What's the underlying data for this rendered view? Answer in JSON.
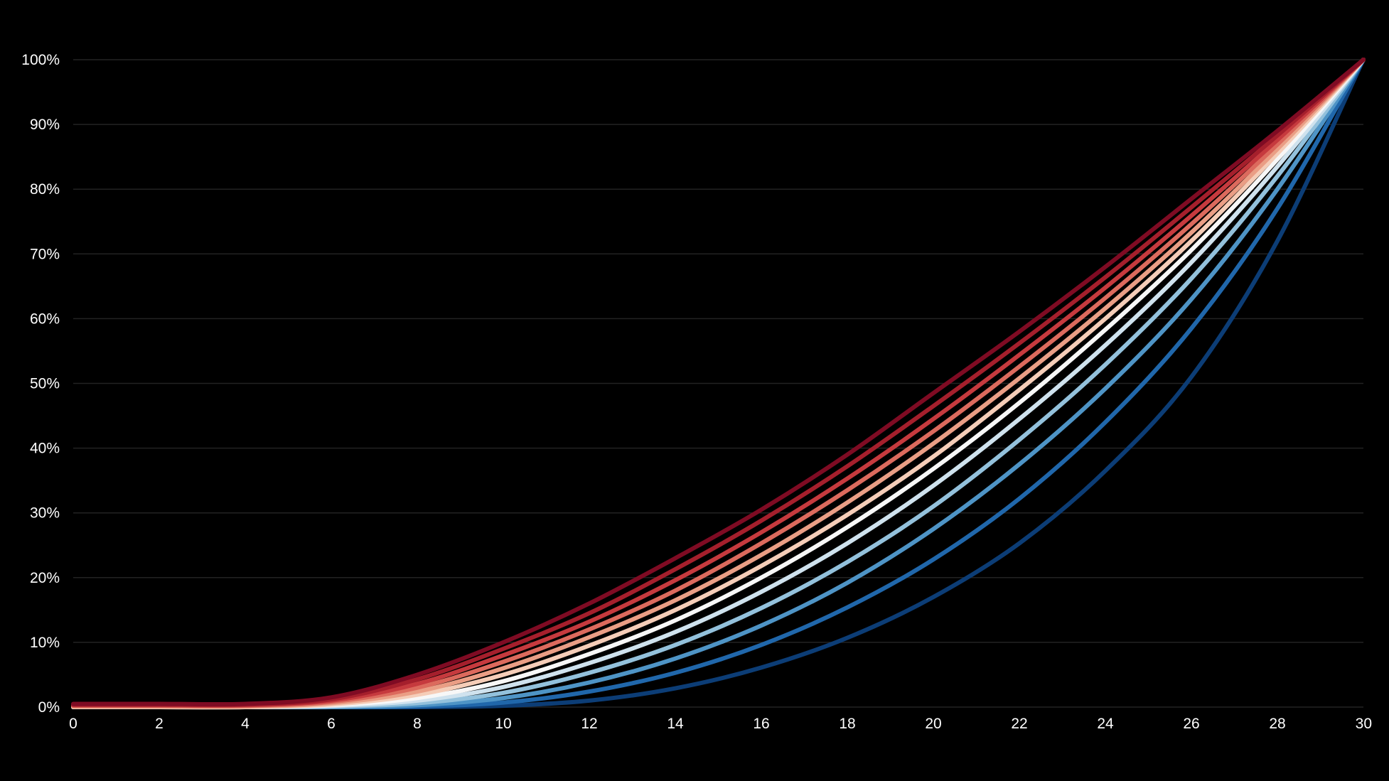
{
  "chart_data": {
    "type": "line",
    "title": "",
    "xlabel": "",
    "ylabel": "",
    "background": "#000000",
    "grid": true,
    "grid_color": "#222222",
    "legend": "none",
    "xlim": [
      0,
      30
    ],
    "ylim": [
      0,
      100
    ],
    "x_ticks": [
      0,
      2,
      4,
      6,
      8,
      10,
      12,
      14,
      16,
      18,
      20,
      22,
      24,
      26,
      28,
      30
    ],
    "x_tick_labels": [
      "0",
      "2",
      "4",
      "6",
      "8",
      "10",
      "12",
      "14",
      "16",
      "18",
      "20",
      "22",
      "24",
      "26",
      "28",
      "30"
    ],
    "y_ticks": [
      0,
      10,
      20,
      30,
      40,
      50,
      60,
      70,
      80,
      90,
      100
    ],
    "y_tick_labels": [
      "0%",
      "10%",
      "20%",
      "30%",
      "40%",
      "50%",
      "60%",
      "70%",
      "80%",
      "90%",
      "100%"
    ],
    "x": [
      0,
      2,
      4,
      6,
      8,
      10,
      12,
      14,
      16,
      18,
      20,
      22,
      24,
      26,
      28,
      30
    ],
    "series": [
      {
        "color": "#7f0b23",
        "values": [
          0.5,
          0.5,
          0.5,
          1.5,
          5.0,
          10.0,
          16.0,
          23.0,
          30.5,
          39.0,
          48.5,
          58.0,
          68.0,
          78.5,
          89.0,
          100.0
        ]
      },
      {
        "color": "#a51f2c",
        "values": [
          0.4,
          0.4,
          0.4,
          1.2,
          4.3,
          9.0,
          14.5,
          21.3,
          28.8,
          37.2,
          46.5,
          56.2,
          66.4,
          77.2,
          88.3,
          100.0
        ]
      },
      {
        "color": "#c63a3e",
        "values": [
          0.3,
          0.3,
          0.3,
          1.0,
          3.6,
          8.0,
          13.2,
          19.6,
          27.0,
          35.3,
          44.5,
          54.4,
          64.8,
          75.9,
          87.6,
          100.0
        ]
      },
      {
        "color": "#dc6a5d",
        "values": [
          0.2,
          0.2,
          0.2,
          0.8,
          3.0,
          7.0,
          12.0,
          18.0,
          25.3,
          33.5,
          42.6,
          52.6,
          63.2,
          74.6,
          86.9,
          100.0
        ]
      },
      {
        "color": "#ea9e85",
        "values": [
          0.1,
          0.1,
          0.1,
          0.6,
          2.4,
          6.0,
          10.8,
          16.5,
          23.5,
          31.6,
          40.7,
          50.8,
          61.6,
          73.3,
          86.2,
          100.0
        ]
      },
      {
        "color": "#f5cdb8",
        "values": [
          0.0,
          0.0,
          0.0,
          0.4,
          1.9,
          5.0,
          9.5,
          15.0,
          21.8,
          29.7,
          38.7,
          49.0,
          60.0,
          72.0,
          85.5,
          100.0
        ]
      },
      {
        "color": "#f7f7f7",
        "values": [
          0.0,
          0.0,
          0.0,
          0.3,
          1.4,
          4.0,
          8.2,
          13.4,
          20.0,
          27.8,
          36.8,
          47.0,
          58.3,
          70.6,
          84.6,
          100.0
        ]
      },
      {
        "color": "#cfe2ee",
        "values": [
          0.0,
          0.0,
          0.0,
          0.2,
          1.0,
          3.1,
          6.8,
          11.6,
          17.8,
          25.3,
          34.2,
          44.5,
          55.9,
          68.7,
          83.5,
          100.0
        ]
      },
      {
        "color": "#93c1dc",
        "values": [
          0.0,
          0.0,
          0.0,
          0.1,
          0.6,
          2.2,
          5.3,
          9.6,
          15.3,
          22.4,
          31.0,
          41.3,
          52.9,
          66.2,
          82.0,
          100.0
        ]
      },
      {
        "color": "#4e94c6",
        "values": [
          0.0,
          0.0,
          0.0,
          0.0,
          0.3,
          1.4,
          3.8,
          7.5,
          12.6,
          19.2,
          27.5,
          37.5,
          49.2,
          63.0,
          80.0,
          100.0
        ]
      },
      {
        "color": "#2067ab",
        "values": [
          0.0,
          0.0,
          0.0,
          0.0,
          0.1,
          0.7,
          2.4,
          5.3,
          9.6,
          15.4,
          22.8,
          32.2,
          44.0,
          58.5,
          77.0,
          100.0
        ]
      },
      {
        "color": "#0c3d76",
        "values": [
          0.0,
          0.0,
          0.0,
          0.0,
          0.0,
          0.2,
          1.0,
          2.9,
          6.1,
          10.7,
          17.0,
          25.3,
          36.5,
          51.0,
          72.0,
          100.0
        ]
      }
    ]
  }
}
